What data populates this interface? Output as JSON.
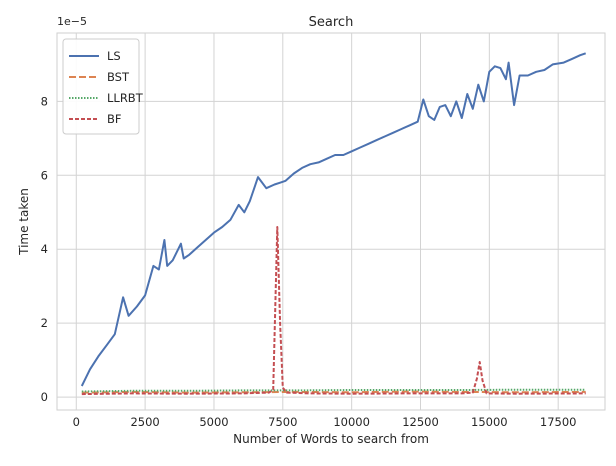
{
  "chart_data": {
    "type": "line",
    "title": "Search",
    "xlabel": "Number of Words to search from",
    "ylabel": "Time taken",
    "y_multiplier_label": "1e−5",
    "xlim": [
      -700,
      19200
    ],
    "ylim": [
      -0.35,
      9.85
    ],
    "y_scale_factor": 1e-05,
    "xticks": [
      0,
      2500,
      5000,
      7500,
      10000,
      12500,
      15000,
      17500
    ],
    "yticks": [
      0,
      2,
      4,
      6,
      8
    ],
    "grid": true,
    "legend_position": "top-left",
    "series": [
      {
        "name": "LS",
        "color": "#4c72b0",
        "dash": "solid",
        "x": [
          200,
          500,
          800,
          1100,
          1400,
          1700,
          1900,
          2200,
          2500,
          2800,
          3000,
          3200,
          3300,
          3500,
          3700,
          3800,
          3900,
          4100,
          4400,
          4700,
          5000,
          5300,
          5600,
          5900,
          6100,
          6300,
          6600,
          6900,
          7200,
          7400,
          7600,
          7900,
          8200,
          8500,
          8800,
          9100,
          9400,
          9700,
          10000,
          10300,
          10600,
          10900,
          11200,
          11500,
          11800,
          12100,
          12400,
          12600,
          12800,
          13000,
          13200,
          13400,
          13600,
          13800,
          14000,
          14200,
          14400,
          14600,
          14800,
          15000,
          15200,
          15400,
          15600,
          15700,
          15900,
          16100,
          16400,
          16700,
          17000,
          17300,
          17700,
          18000,
          18300,
          18500
        ],
        "y": [
          0.3,
          0.75,
          1.1,
          1.4,
          1.7,
          2.7,
          2.2,
          2.45,
          2.75,
          3.55,
          3.45,
          4.25,
          3.55,
          3.7,
          4.0,
          4.15,
          3.75,
          3.85,
          4.05,
          4.25,
          4.45,
          4.6,
          4.8,
          5.2,
          5.0,
          5.3,
          5.95,
          5.65,
          5.75,
          5.8,
          5.85,
          6.05,
          6.2,
          6.3,
          6.35,
          6.45,
          6.55,
          6.55,
          6.65,
          6.75,
          6.85,
          6.95,
          7.05,
          7.15,
          7.25,
          7.35,
          7.45,
          8.05,
          7.6,
          7.5,
          7.85,
          7.9,
          7.6,
          8.0,
          7.55,
          8.2,
          7.8,
          8.45,
          8.0,
          8.8,
          8.95,
          8.9,
          8.6,
          9.05,
          7.9,
          8.7,
          8.7,
          8.8,
          8.85,
          9.0,
          9.05,
          9.15,
          9.25,
          9.3
        ]
      },
      {
        "name": "BST",
        "color": "#dd8452",
        "dash": "7,3",
        "x": [
          200,
          2000,
          4000,
          6000,
          8000,
          10000,
          12000,
          14000,
          16000,
          18500
        ],
        "y": [
          0.12,
          0.14,
          0.12,
          0.13,
          0.14,
          0.13,
          0.15,
          0.14,
          0.13,
          0.14
        ]
      },
      {
        "name": "LLRBT",
        "color": "#55a868",
        "dash": "1.5,1.5",
        "x": [
          200,
          2000,
          4000,
          6000,
          8000,
          10000,
          12000,
          14000,
          16000,
          18500
        ],
        "y": [
          0.15,
          0.17,
          0.17,
          0.18,
          0.18,
          0.19,
          0.19,
          0.19,
          0.2,
          0.2
        ]
      },
      {
        "name": "BF",
        "color": "#c44e52",
        "dash": "4,2",
        "x": [
          200,
          2000,
          4000,
          6000,
          7000,
          7150,
          7300,
          7400,
          7500,
          7650,
          8500,
          10000,
          12000,
          14000,
          14400,
          14550,
          14650,
          14750,
          14900,
          16000,
          18500
        ],
        "y": [
          0.08,
          0.1,
          0.09,
          0.1,
          0.12,
          0.2,
          4.6,
          2.0,
          0.25,
          0.12,
          0.1,
          0.09,
          0.1,
          0.1,
          0.12,
          0.5,
          0.95,
          0.45,
          0.1,
          0.09,
          0.1
        ]
      }
    ]
  }
}
